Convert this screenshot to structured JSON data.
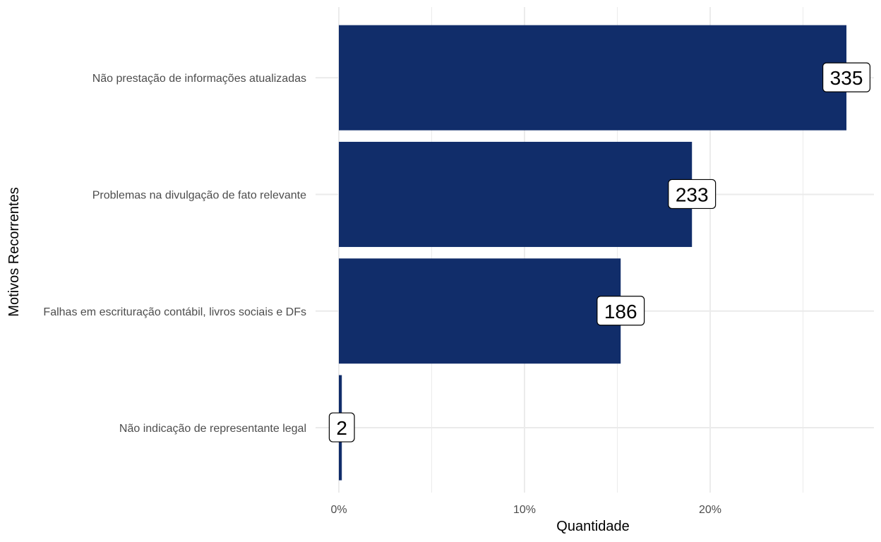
{
  "chart_data": {
    "type": "bar",
    "orientation": "horizontal",
    "title": "",
    "xlabel": "Quantidade",
    "ylabel": "Motivos Recorrentes",
    "categories": [
      "Não prestação de informações atualizadas",
      "Problemas na divulgação de fato relevante",
      "Falhas em escrituração contábil, livros sociais e DFs",
      "Não indicação de representante legal"
    ],
    "values": [
      335,
      233,
      186,
      2
    ],
    "value_labels": [
      "335",
      "233",
      "186",
      "2"
    ],
    "x_ticks": [
      {
        "value": 0,
        "label": "0%"
      },
      {
        "value": 0.1,
        "label": "10%"
      },
      {
        "value": 0.2,
        "label": "20%"
      }
    ],
    "x_share_of_total": [
      0.2734,
      0.1902,
      0.1518,
      0.0016
    ],
    "xlim": [
      0,
      0.287
    ],
    "grid": true,
    "legend": "none",
    "bar_color": "#112d6a",
    "grid_color": "#ebebeb"
  }
}
